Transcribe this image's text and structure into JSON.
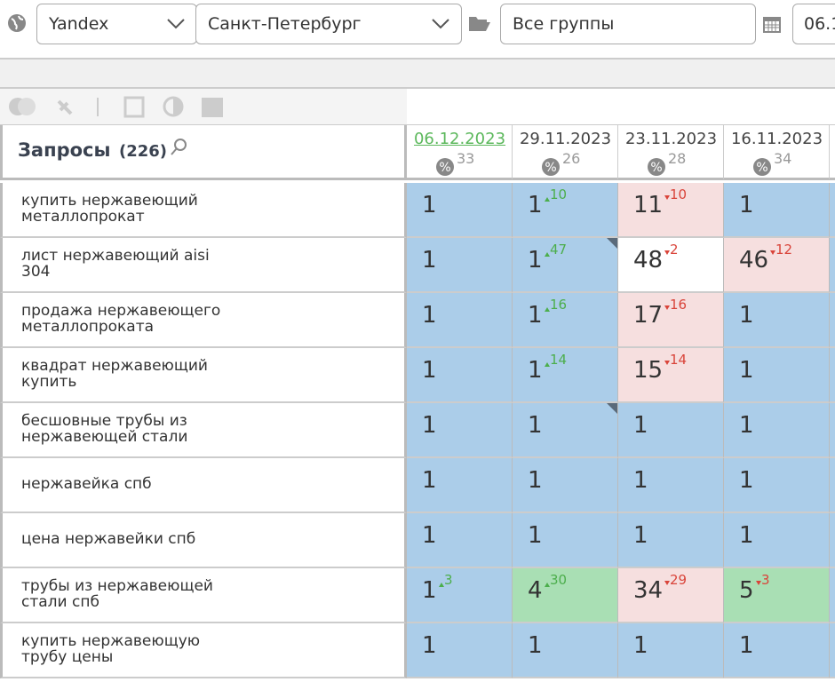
{
  "toolbar": {
    "engine": "Yandex",
    "region": "Санкт-Петербург",
    "group": "Все группы",
    "date": "06.1"
  },
  "table": {
    "header": {
      "title": "Запросы",
      "count": "(226)"
    },
    "dates": [
      {
        "label": "06.12.2023",
        "percent": 33,
        "link": true
      },
      {
        "label": "29.11.2023",
        "percent": 26
      },
      {
        "label": "23.11.2023",
        "percent": 28
      },
      {
        "label": "16.11.2023",
        "percent": 34
      }
    ],
    "rows": [
      {
        "query": "купить нержавеющий металлопрокат",
        "cells": [
          {
            "pos": 1,
            "bg": "#abcde9"
          },
          {
            "pos": 1,
            "change": 10,
            "dir": "up",
            "bg": "#abcde9"
          },
          {
            "pos": 11,
            "change": 10,
            "dir": "down",
            "bg": "#f6dfdf"
          },
          {
            "pos": 1,
            "bg": "#abcde9"
          }
        ]
      },
      {
        "query": "лист нержавеющий aisi 304",
        "cells": [
          {
            "pos": 1,
            "bg": "#abcde9"
          },
          {
            "pos": 1,
            "change": 47,
            "dir": "up",
            "bg": "#abcde9",
            "corner": true
          },
          {
            "pos": 48,
            "change": 2,
            "dir": "down",
            "bg": "#ffffff"
          },
          {
            "pos": 46,
            "change": 12,
            "dir": "down",
            "bg": "#f6dfdf"
          }
        ]
      },
      {
        "query": "продажа нержавеющего металлопроката",
        "cells": [
          {
            "pos": 1,
            "bg": "#abcde9"
          },
          {
            "pos": 1,
            "change": 16,
            "dir": "up",
            "bg": "#abcde9"
          },
          {
            "pos": 17,
            "change": 16,
            "dir": "down",
            "bg": "#f6dfdf"
          },
          {
            "pos": 1,
            "bg": "#abcde9"
          }
        ]
      },
      {
        "query": "квадрат нержавеющий купить",
        "cells": [
          {
            "pos": 1,
            "bg": "#abcde9"
          },
          {
            "pos": 1,
            "change": 14,
            "dir": "up",
            "bg": "#abcde9"
          },
          {
            "pos": 15,
            "change": 14,
            "dir": "down",
            "bg": "#f6dfdf"
          },
          {
            "pos": 1,
            "bg": "#abcde9"
          }
        ]
      },
      {
        "query": "бесшовные трубы из нержавеющей стали",
        "cells": [
          {
            "pos": 1,
            "bg": "#abcde9"
          },
          {
            "pos": 1,
            "bg": "#abcde9",
            "corner": true
          },
          {
            "pos": 1,
            "bg": "#abcde9"
          },
          {
            "pos": 1,
            "bg": "#abcde9"
          }
        ]
      },
      {
        "query": "нержавейка спб",
        "cells": [
          {
            "pos": 1,
            "bg": "#abcde9"
          },
          {
            "pos": 1,
            "bg": "#abcde9"
          },
          {
            "pos": 1,
            "bg": "#abcde9"
          },
          {
            "pos": 1,
            "bg": "#abcde9"
          }
        ]
      },
      {
        "query": "цена нержавейки спб",
        "cells": [
          {
            "pos": 1,
            "bg": "#abcde9"
          },
          {
            "pos": 1,
            "bg": "#abcde9"
          },
          {
            "pos": 1,
            "bg": "#abcde9"
          },
          {
            "pos": 1,
            "bg": "#abcde9"
          }
        ]
      },
      {
        "query": "трубы из нержавеющей стали спб",
        "cells": [
          {
            "pos": 1,
            "change": 3,
            "dir": "up",
            "bg": "#abcde9"
          },
          {
            "pos": 4,
            "change": 30,
            "dir": "up",
            "bg": "#a9dfb4"
          },
          {
            "pos": 34,
            "change": 29,
            "dir": "down",
            "bg": "#f6dfdf"
          },
          {
            "pos": 5,
            "change": 3,
            "dir": "down",
            "bg": "#a9dfb4"
          }
        ]
      },
      {
        "query": "купить нержавеющую трубу цены",
        "cells": [
          {
            "pos": 1,
            "bg": "#abcde9"
          },
          {
            "pos": 1,
            "bg": "#abcde9"
          },
          {
            "pos": 1,
            "bg": "#abcde9"
          },
          {
            "pos": 1,
            "bg": "#abcde9"
          }
        ]
      }
    ]
  }
}
